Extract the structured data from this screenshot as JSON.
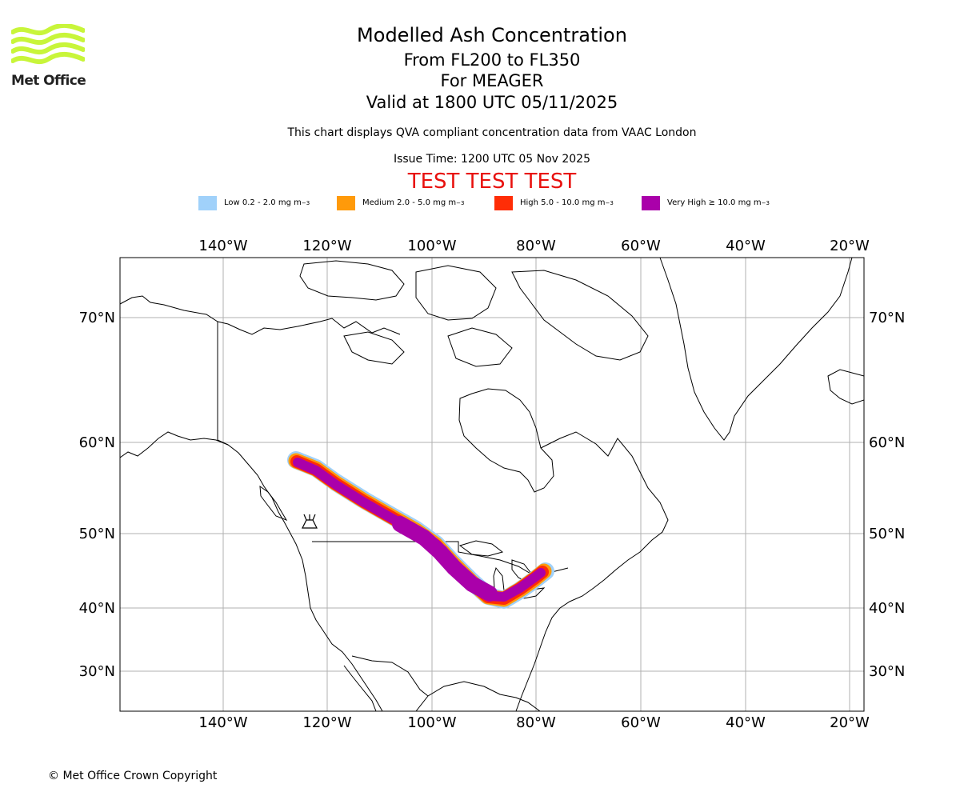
{
  "logo": {
    "text": "Met Office",
    "color": "#c8f53a"
  },
  "header": {
    "title": "Modelled Ash Concentration",
    "levels": "From FL200 to FL350",
    "volcano": "For MEAGER",
    "valid": "Valid at 1800 UTC 05/11/2025",
    "description": "This chart displays QVA compliant concentration data from VAAC London",
    "issue_time": "Issue Time: 1200 UTC 05 Nov 2025",
    "test_banner": "TEST TEST TEST"
  },
  "legend": [
    {
      "label": "Low 0.2 - 2.0 mg m",
      "color": "#a0d1fa"
    },
    {
      "label": "Medium 2.0 - 5.0 mg m",
      "color": "#ff9a0a"
    },
    {
      "label": "High 5.0 - 10.0 mg m",
      "color": "#ff2d06"
    },
    {
      "label": "Very High ≥ 10.0 mg m",
      "color": "#aa00aa"
    }
  ],
  "legend_unit_exponent": "−3",
  "map": {
    "lon_labels": [
      "140°W",
      "120°W",
      "100°W",
      "80°W",
      "60°W",
      "40°W",
      "20°W"
    ],
    "lat_labels": [
      "70°N",
      "60°N",
      "50°N",
      "40°N",
      "30°N"
    ],
    "grid_color": "#b0b0b0",
    "coast_color": "#000000"
  },
  "footer": {
    "copyright": "© Met Office Crown Copyright"
  }
}
